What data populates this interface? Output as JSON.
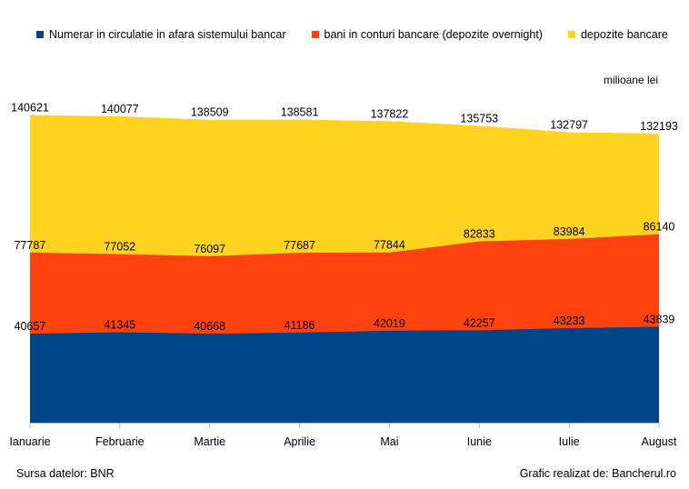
{
  "chart_data": {
    "type": "area",
    "stacked": true,
    "categories": [
      "Ianuarie",
      "Februarie",
      "Martie",
      "Aprilie",
      "Mai",
      "Iunie",
      "Iulie",
      "August"
    ],
    "series": [
      {
        "name": "Numerar in circulatie in afara sistemului bancar",
        "color": "#004587",
        "values": [
          40657,
          41345,
          40668,
          41186,
          42019,
          42257,
          43233,
          43839
        ],
        "labels": [
          "40657",
          "41345",
          "40668",
          "41186",
          "42019",
          "42257",
          "43233",
          "43839"
        ]
      },
      {
        "name": "bani in conturi bancare (depozite overnight)",
        "color": "#ff420e",
        "cumulative": [
          77787,
          77052,
          76097,
          77687,
          77844,
          82833,
          83984,
          86140
        ],
        "labels": [
          "77787",
          "77052",
          "76097",
          "77687",
          "77844",
          "82833",
          "83984",
          "86140"
        ]
      },
      {
        "name": "depozite bancare",
        "color": "#ffd320",
        "cumulative": [
          140621,
          140077,
          138509,
          138581,
          137822,
          135753,
          132797,
          132193
        ],
        "labels": [
          "140621",
          "140077",
          "138509",
          "138581",
          "137822",
          "135753",
          "132797",
          "132193"
        ]
      }
    ],
    "ylim": [
      0,
      160000
    ],
    "units": "milioane lei",
    "grid": false,
    "legend_position": "top"
  },
  "footer": {
    "source": "Sursa datelor: BNR",
    "credit": "Grafic realizat de: Bancherul.ro"
  }
}
